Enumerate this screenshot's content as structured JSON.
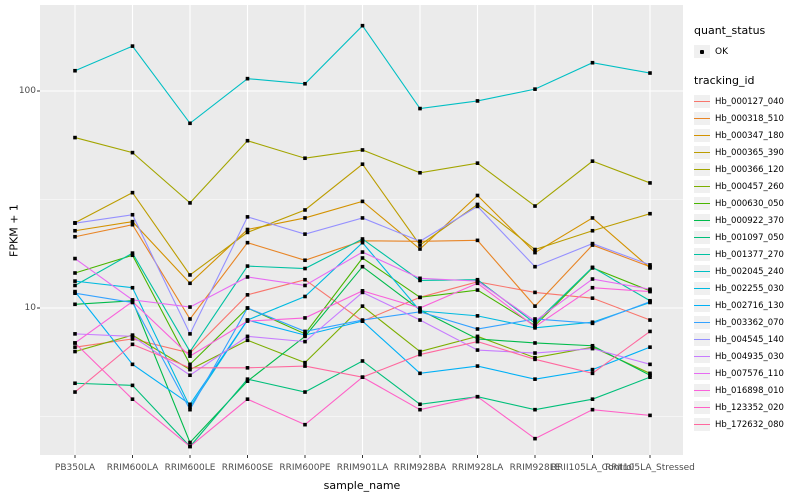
{
  "figure": {
    "x_axis_title": "sample_name",
    "y_axis_title": "FPKM + 1",
    "legend": {
      "quant_status_title": "quant_status",
      "quant_status_ok_label": "OK",
      "tracking_id_title": "tracking_id"
    }
  },
  "chart_data": {
    "type": "line",
    "title": "",
    "xlabel": "sample_name",
    "ylabel": "FPKM + 1",
    "y_scale": "log10",
    "ylim": [
      2.05,
      250
    ],
    "grid": "on",
    "legend_position": "right",
    "quant_status": "OK",
    "point_color": "#000000",
    "panel_background": "#ebebeb",
    "y_tick_values": [
      100,
      10
    ],
    "y_tick_labels": [
      "100",
      "10"
    ],
    "y_minor_gridlines": [
      31.623,
      3.1623
    ],
    "categories": [
      "PB350LA",
      "RRIM600LA",
      "RRIM600LE",
      "RRIM600SE",
      "RRIM600PE",
      "RRIM901LA",
      "RRIM928BA",
      "RRIM928LA",
      "RRIM928LE",
      "RRII105LA_Control",
      "RRII105LA_Stressed"
    ],
    "series": [
      {
        "name": "Hb_000127_040",
        "color": "#F8766D",
        "values": [
          6.6,
          7.2,
          6.2,
          11.5,
          13.5,
          8.7,
          11.2,
          13.2,
          11.8,
          11.1,
          8.8
        ]
      },
      {
        "name": "Hb_000318_510",
        "color": "#E88526",
        "values": [
          21.3,
          24.2,
          8.9,
          20.0,
          16.6,
          20.4,
          20.3,
          20.5,
          10.2,
          19.5,
          15.5
        ]
      },
      {
        "name": "Hb_000347_180",
        "color": "#D39200",
        "values": [
          22.7,
          25.0,
          13.0,
          23.0,
          26.0,
          31.0,
          18.7,
          33.0,
          18.0,
          26.0,
          15.3
        ]
      },
      {
        "name": "Hb_000365_390",
        "color": "#BC9D00",
        "values": [
          24.7,
          34.0,
          14.2,
          22.3,
          28.3,
          46.0,
          19.5,
          30.0,
          18.6,
          22.7,
          27.2
        ]
      },
      {
        "name": "Hb_000366_120",
        "color": "#A3A500",
        "values": [
          61.0,
          52.0,
          30.5,
          59.0,
          49.0,
          53.5,
          42.0,
          46.5,
          29.5,
          47.5,
          37.7
        ]
      },
      {
        "name": "Hb_000457_260",
        "color": "#7CAE00",
        "values": [
          6.3,
          7.5,
          5.2,
          7.1,
          5.6,
          10.2,
          6.3,
          7.4,
          5.9,
          6.6,
          5.0
        ]
      },
      {
        "name": "Hb_000630_050",
        "color": "#49B500",
        "values": [
          14.5,
          17.5,
          5.5,
          10.0,
          7.6,
          17.0,
          11.2,
          12.1,
          8.3,
          15.3,
          12.0
        ]
      },
      {
        "name": "Hb_000922_370",
        "color": "#00BB4B",
        "values": [
          10.4,
          10.8,
          2.4,
          4.6,
          7.4,
          15.5,
          9.8,
          7.2,
          6.9,
          6.7,
          4.9
        ]
      },
      {
        "name": "Hb_001097_050",
        "color": "#00BF7A",
        "values": [
          4.5,
          4.4,
          2.3,
          4.7,
          4.1,
          5.7,
          3.6,
          3.9,
          3.4,
          3.8,
          4.8
        ]
      },
      {
        "name": "Hb_001377_270",
        "color": "#00C1A2",
        "values": [
          12.7,
          17.9,
          6.3,
          15.6,
          15.2,
          20.8,
          13.4,
          13.5,
          8.5,
          15.4,
          10.8
        ]
      },
      {
        "name": "Hb_002045_240",
        "color": "#00BFC4",
        "values": [
          124,
          161,
          71,
          114,
          108,
          200,
          83,
          90,
          102,
          135,
          121
        ]
      },
      {
        "name": "Hb_002255_030",
        "color": "#00BAE0",
        "values": [
          13.3,
          12.4,
          3.5,
          8.8,
          11.3,
          20.0,
          9.7,
          9.2,
          8.1,
          8.6,
          10.6
        ]
      },
      {
        "name": "Hb_002716_130",
        "color": "#00B0F6",
        "values": [
          11.9,
          5.5,
          3.6,
          8.8,
          7.5,
          8.7,
          5.0,
          5.4,
          4.7,
          5.2,
          6.6
        ]
      },
      {
        "name": "Hb_003362_070",
        "color": "#35A2FF",
        "values": [
          11.7,
          10.6,
          3.4,
          10.0,
          7.8,
          8.8,
          9.6,
          8.0,
          8.9,
          8.5,
          10.7
        ]
      },
      {
        "name": "Hb_004545_140",
        "color": "#9590FF",
        "values": [
          24.6,
          26.9,
          7.6,
          26.3,
          21.9,
          26.0,
          20.3,
          29.4,
          15.5,
          19.8,
          15.8
        ]
      },
      {
        "name": "Hb_004935_030",
        "color": "#C77CFF",
        "values": [
          7.6,
          7.4,
          4.9,
          7.4,
          7.0,
          11.8,
          8.8,
          6.4,
          6.2,
          6.5,
          5.5
        ]
      },
      {
        "name": "Hb_007576_110",
        "color": "#E76BF3",
        "values": [
          16.9,
          10.9,
          10.1,
          13.9,
          12.7,
          18.1,
          13.7,
          13.3,
          8.7,
          13.6,
          12.2
        ]
      },
      {
        "name": "Hb_016898_010",
        "color": "#FA62DB",
        "values": [
          6.9,
          10.7,
          6.0,
          8.7,
          9.0,
          12.0,
          10.0,
          13.0,
          8.2,
          12.4,
          11.9
        ]
      },
      {
        "name": "Hb_123352_020",
        "color": "#FF61C7",
        "values": [
          6.9,
          3.8,
          2.3,
          3.8,
          2.9,
          4.8,
          3.4,
          3.9,
          2.5,
          3.4,
          3.2
        ]
      },
      {
        "name": "Hb_172632_080",
        "color": "#FF689E",
        "values": [
          4.1,
          6.8,
          5.3,
          5.3,
          5.4,
          4.8,
          6.1,
          7.0,
          5.8,
          5.0,
          7.8
        ]
      }
    ]
  }
}
